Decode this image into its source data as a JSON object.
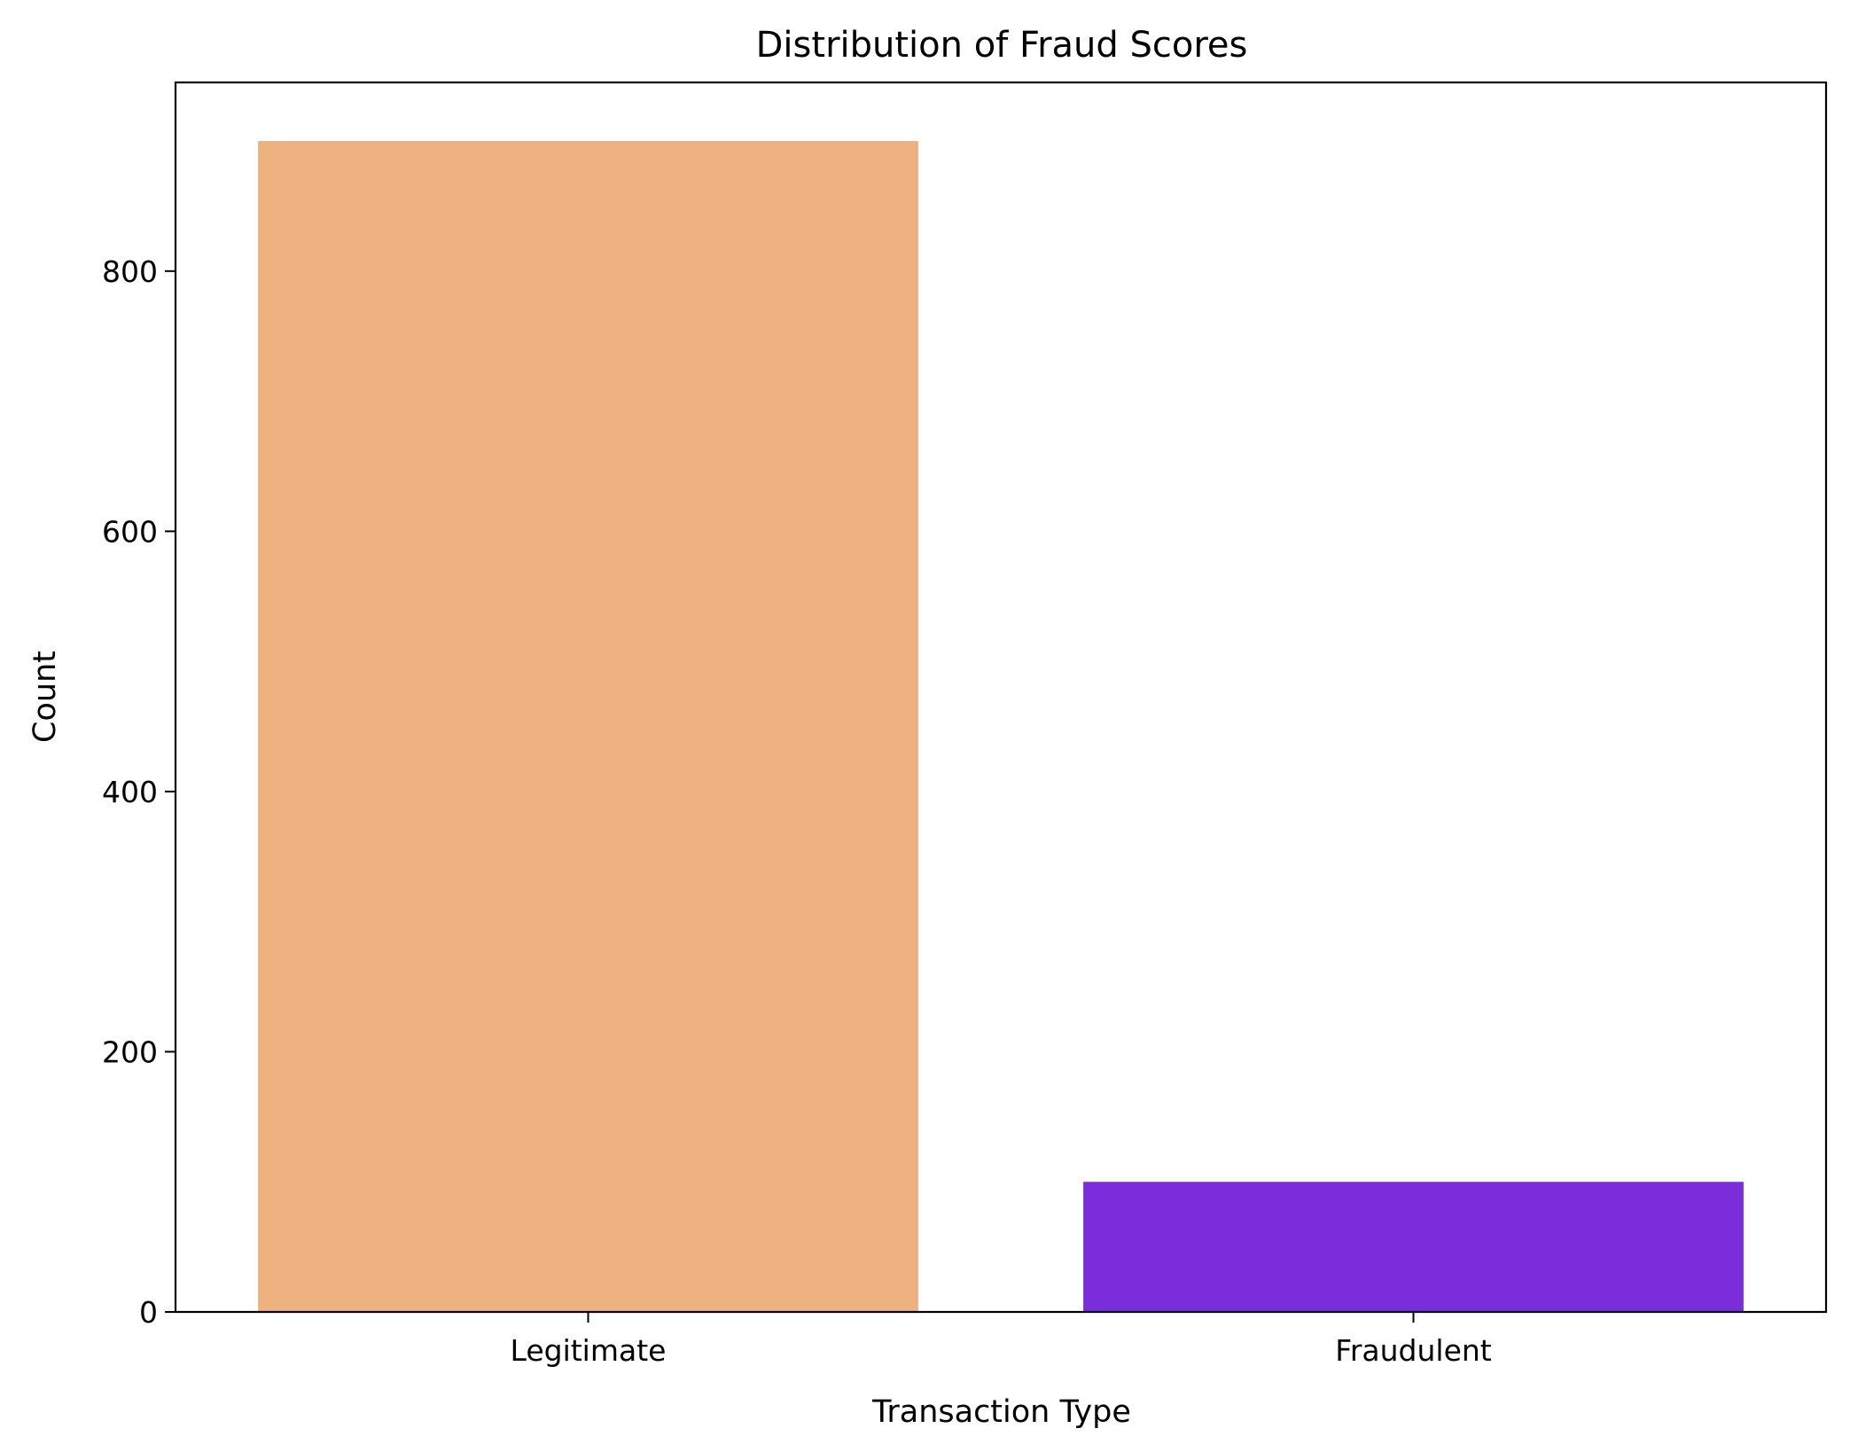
{
  "chart_data": {
    "type": "bar",
    "title": "Distribution of Fraud Scores",
    "xlabel": "Transaction Type",
    "ylabel": "Count",
    "categories": [
      "Legitimate",
      "Fraudulent"
    ],
    "values": [
      900,
      100
    ],
    "colors": [
      "#EEB180",
      "#7B2DDB"
    ],
    "ylim": [
      0,
      945
    ],
    "yticks": [
      0,
      200,
      400,
      600,
      800
    ],
    "grid": false,
    "legend": "none"
  }
}
